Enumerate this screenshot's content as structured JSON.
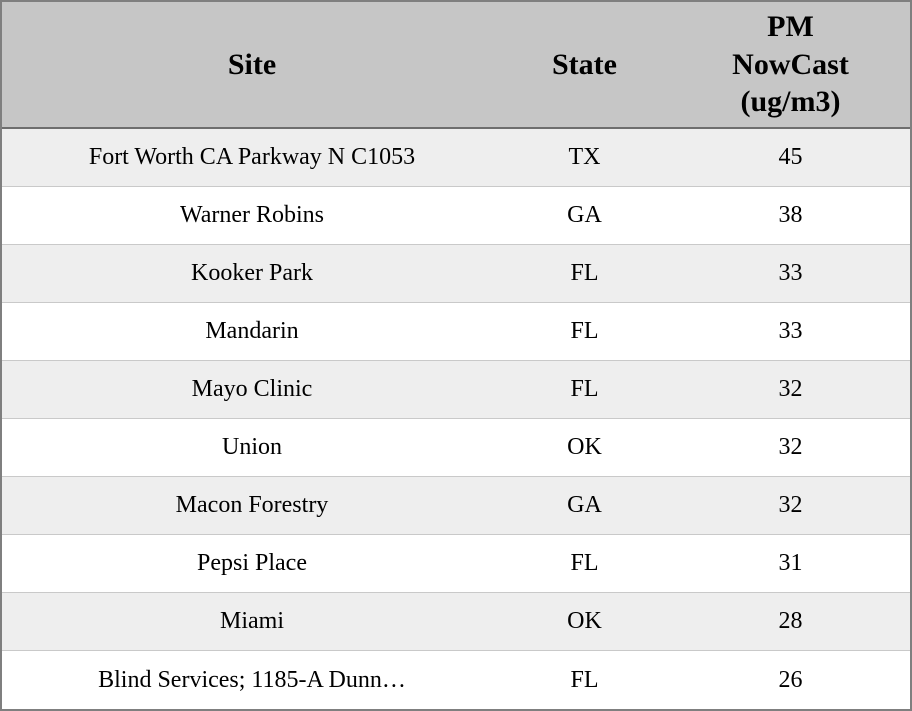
{
  "table": {
    "header": {
      "site": "Site",
      "state": "State",
      "pm": "PM NowCast (ug/m3)"
    },
    "rows": [
      {
        "site": "Fort Worth CA Parkway N C1053",
        "state": "TX",
        "value": "45"
      },
      {
        "site": "Warner Robins",
        "state": "GA",
        "value": "38"
      },
      {
        "site": "Kooker Park",
        "state": "FL",
        "value": "33"
      },
      {
        "site": "Mandarin",
        "state": "FL",
        "value": "33"
      },
      {
        "site": "Mayo Clinic",
        "state": "FL",
        "value": "32"
      },
      {
        "site": "Union",
        "state": "OK",
        "value": "32"
      },
      {
        "site": "Macon Forestry",
        "state": "GA",
        "value": "32"
      },
      {
        "site": "Pepsi Place",
        "state": "FL",
        "value": "31"
      },
      {
        "site": "Miami",
        "state": "OK",
        "value": "28"
      },
      {
        "site": "Blind Services; 1185-A Dunn…",
        "state": "FL",
        "value": "26"
      }
    ]
  },
  "colors": {
    "header_background": "#c6c6c6",
    "row_alt_background": "#eeeeee",
    "row_background": "#ffffff",
    "outer_border": "#7f7f7f",
    "text": "#000000"
  },
  "chart_data": {
    "type": "table",
    "title": "",
    "columns": [
      "Site",
      "State",
      "PM NowCast (ug/m3)"
    ],
    "rows": [
      [
        "Fort Worth CA Parkway N C1053",
        "TX",
        45
      ],
      [
        "Warner Robins",
        "GA",
        38
      ],
      [
        "Kooker Park",
        "FL",
        33
      ],
      [
        "Mandarin",
        "FL",
        33
      ],
      [
        "Mayo Clinic",
        "FL",
        32
      ],
      [
        "Union",
        "OK",
        32
      ],
      [
        "Macon Forestry",
        "GA",
        32
      ],
      [
        "Pepsi Place",
        "FL",
        31
      ],
      [
        "Miami",
        "OK",
        28
      ],
      [
        "Blind Services; 1185-A Dunn…",
        "FL",
        26
      ]
    ]
  }
}
